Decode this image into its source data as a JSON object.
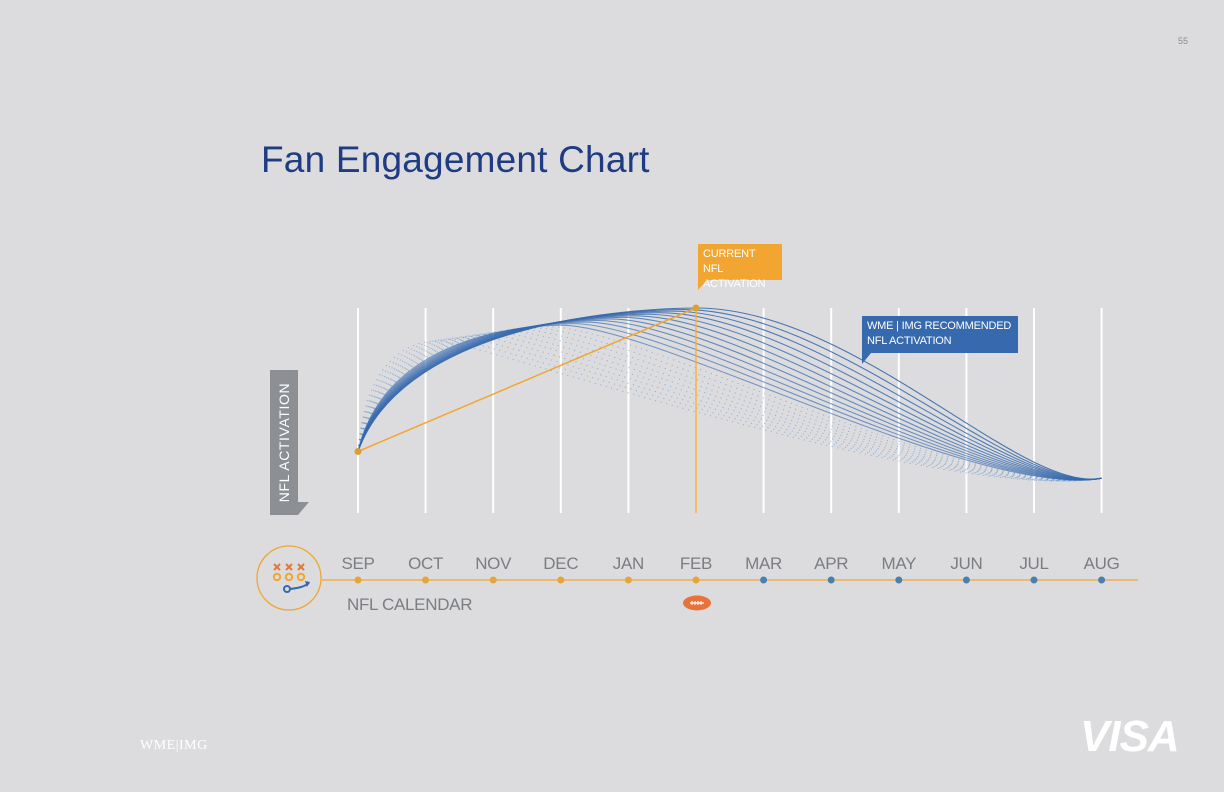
{
  "page_number": "55",
  "title": "Fan Engagement Chart",
  "colors": {
    "background": "#dcdcde",
    "title": "#1f3b84",
    "orange": "#f2a531",
    "blue": "#3669ad",
    "gray_text": "#7a7d82"
  },
  "callouts": {
    "current_line1": "CURRENT NFL",
    "current_line2": "ACTIVATION",
    "recommended_line1": "WME | IMG RECOMMENDED",
    "recommended_line2": "NFL ACTIVATION"
  },
  "logos": {
    "left": "WME|IMG",
    "right": "VISA"
  },
  "icons": {
    "playbook": "playbook-icon",
    "football": "football-icon"
  },
  "chart_data": {
    "type": "line",
    "title": "Fan Engagement Chart",
    "ylabel": "NFL ACTIVATION",
    "xlabel": "NFL CALENDAR",
    "categories": [
      "SEP",
      "OCT",
      "NOV",
      "DEC",
      "JAN",
      "FEB",
      "MAR",
      "APR",
      "MAY",
      "JUN",
      "JUL",
      "AUG"
    ],
    "season_months": [
      "SEP",
      "OCT",
      "NOV",
      "DEC",
      "JAN",
      "FEB"
    ],
    "offseason_months": [
      "MAR",
      "APR",
      "MAY",
      "JUN",
      "JUL",
      "AUG"
    ],
    "ylim": [
      0,
      100
    ],
    "series": [
      {
        "name": "CURRENT NFL ACTIVATION",
        "type": "linear",
        "start": [
          "SEP",
          30
        ],
        "peak": [
          "FEB",
          100
        ]
      },
      {
        "name": "WME | IMG RECOMMENDED NFL ACTIVATION",
        "type": "curve-family",
        "start": [
          "SEP",
          30
        ],
        "peak": [
          "FEB",
          100
        ],
        "end": [
          "AUG",
          17
        ]
      }
    ],
    "highlight_month": "FEB"
  }
}
